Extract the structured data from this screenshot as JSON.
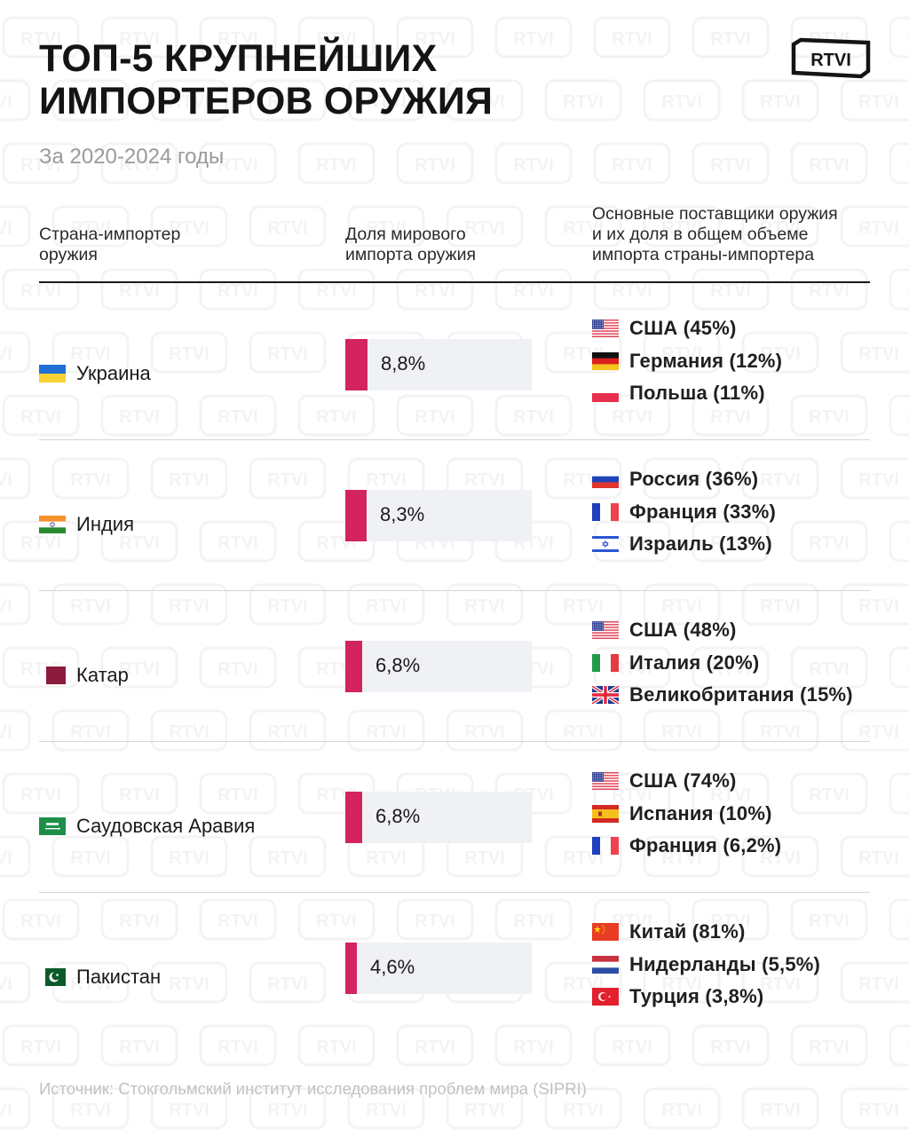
{
  "header": {
    "title_line1": "ТОП-5 КРУПНЕЙШИХ",
    "title_line2": "ИМПОРТЕРОВ ОРУЖИЯ",
    "subtitle": "За 2020-2024 годы",
    "logo_text": "RTVI"
  },
  "columns": {
    "col1": [
      "Страна-импортер",
      "оружия"
    ],
    "col2": [
      "Доля мирового",
      "импорта оружия"
    ],
    "col3": [
      "Основные поставщики оружия",
      "и их доля в общем объеме",
      "импорта страны-импортера"
    ]
  },
  "colors": {
    "bar_fill": "#d3245f",
    "bar_track": "#f0f1f5"
  },
  "chart_data": {
    "type": "table",
    "title": "ТОП-5 КРУПНЕЙШИХ ИМПОРТЕРОВ ОРУЖИЯ",
    "subtitle": "За 2020-2024 годы",
    "unit": "% of world arms imports",
    "rows": [
      {
        "country": "Украина",
        "flag": "ukraine-flag",
        "share": 8.8,
        "share_label": "8,8%",
        "suppliers": [
          {
            "name": "США (45%)",
            "country": "США",
            "share": 45,
            "flag": "usa-flag"
          },
          {
            "name": "Германия (12%)",
            "country": "Германия",
            "share": 12,
            "flag": "germany-flag"
          },
          {
            "name": "Польша (11%)",
            "country": "Польша",
            "share": 11,
            "flag": "poland-flag"
          }
        ]
      },
      {
        "country": "Индия",
        "flag": "india-flag",
        "share": 8.3,
        "share_label": "8,3%",
        "suppliers": [
          {
            "name": "Россия (36%)",
            "country": "Россия",
            "share": 36,
            "flag": "russia-flag"
          },
          {
            "name": "Франция (33%)",
            "country": "Франция",
            "share": 33,
            "flag": "france-flag"
          },
          {
            "name": "Израиль (13%)",
            "country": "Израиль",
            "share": 13,
            "flag": "israel-flag"
          }
        ]
      },
      {
        "country": "Катар",
        "flag": "qatar-flag",
        "share": 6.8,
        "share_label": "6,8%",
        "suppliers": [
          {
            "name": "США (48%)",
            "country": "США",
            "share": 48,
            "flag": "usa-flag"
          },
          {
            "name": "Италия (20%)",
            "country": "Италия",
            "share": 20,
            "flag": "italy-flag"
          },
          {
            "name": "Великобритания (15%)",
            "country": "Великобритания",
            "share": 15,
            "flag": "uk-flag"
          }
        ]
      },
      {
        "country": "Саудовская Аравия",
        "flag": "saudi-arabia-flag",
        "share": 6.8,
        "share_label": "6,8%",
        "suppliers": [
          {
            "name": "США (74%)",
            "country": "США",
            "share": 74,
            "flag": "usa-flag"
          },
          {
            "name": "Испания (10%)",
            "country": "Испания",
            "share": 10,
            "flag": "spain-flag"
          },
          {
            "name": "Франция (6,2%)",
            "country": "Франция",
            "share": 6.2,
            "flag": "france-flag"
          }
        ]
      },
      {
        "country": "Пакистан",
        "flag": "pakistan-flag",
        "share": 4.6,
        "share_label": "4,6%",
        "suppliers": [
          {
            "name": "Китай (81%)",
            "country": "Китай",
            "share": 81,
            "flag": "china-flag"
          },
          {
            "name": "Нидерланды (5,5%)",
            "country": "Нидерланды",
            "share": 5.5,
            "flag": "netherlands-flag"
          },
          {
            "name": "Турция (3,8%)",
            "country": "Турция",
            "share": 3.8,
            "flag": "turkey-flag"
          }
        ]
      }
    ]
  },
  "footer": {
    "source": "Источник: Стокгольмский институт исследования проблем мира (SIPRI)"
  }
}
